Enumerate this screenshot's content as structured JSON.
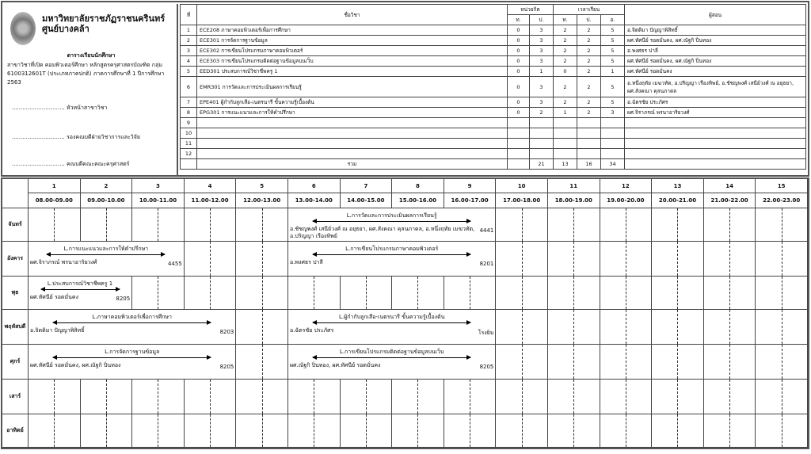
{
  "header": {
    "university": "มหาวิทยาลัยราชภัฏราชนครินทร์",
    "campus": "ศูนย์บางคล้า",
    "schedule_title": "ตารางเรียนนักศึกษา",
    "description": "สาขาวิชาที่เปิด คอมพิวเตอร์ศึกษา  หลักสูตรครุศาสตรบัณฑิต กลุ่ม 6100312601T (ประเภทภาคปกติ) ภาคการศึกษาที่ 1 ปีการศึกษา 2563",
    "signatures": [
      {
        "dots": "..............................",
        "role": "หัวหน้าสาขาวิชา"
      },
      {
        "dots": "..............................",
        "role": "รองคณบดีฝ่ายวิชาการและวิจัย"
      },
      {
        "dots": "..............................",
        "role": "คณบดีคณะคณะครุศาสตร์"
      }
    ]
  },
  "courses": {
    "headers": {
      "no": "ที่",
      "subject": "ชื่อวิชา",
      "credits": "หน่วยกิต",
      "hours": "เวลาเรียน",
      "th": "ท.",
      "pr": "ป.",
      "se": "อ.",
      "teacher": "ผู้สอน",
      "total": "รวม"
    },
    "rows": [
      {
        "no": "1",
        "subject": "ECE208 ภาษาคอมพิวเตอร์เพื่อการศึกษา",
        "c_t": "0",
        "c_p": "3",
        "h_t": "2",
        "h_p": "2",
        "h_s": "5",
        "teacher": "อ.จิตติมา ปัญญาพิสิทธิ์"
      },
      {
        "no": "2",
        "subject": "ECE301 การจัดการฐานข้อมูล",
        "c_t": "0",
        "c_p": "3",
        "h_t": "2",
        "h_p": "2",
        "h_s": "5",
        "teacher": "ผศ.ทัศนีย์ รอดมั่นคง, ผศ.ณัฐกิ ปิ่นทอง"
      },
      {
        "no": "3",
        "subject": "ECE302 การเขียนโปรแกรมภาษาคอมพิวเตอร์",
        "c_t": "0",
        "c_p": "3",
        "h_t": "2",
        "h_p": "2",
        "h_s": "5",
        "teacher": "อ.พงศธร ปาลี"
      },
      {
        "no": "4",
        "subject": "ECE303 การเขียนโปรแกรมติดต่อฐานข้อมูลบนเว็บ",
        "c_t": "0",
        "c_p": "3",
        "h_t": "2",
        "h_p": "2",
        "h_s": "5",
        "teacher": "ผศ.ทัศนีย์ รอดมั่นคง, ผศ.ณัฐกิ ปิ่นทอง"
      },
      {
        "no": "5",
        "subject": "EED301 ประสบการณ์วิชาชีพครู 1",
        "c_t": "0",
        "c_p": "1",
        "h_t": "0",
        "h_p": "2",
        "h_s": "1",
        "teacher": "ผศ.ทัศนีย์ รอดมั่นคง"
      },
      {
        "no": "6",
        "subject": "EMR301 การวัดและการประเมินผลการเรียนรู้",
        "c_t": "0",
        "c_p": "3",
        "h_t": "2",
        "h_p": "2",
        "h_s": "5",
        "teacher": "อ.หนึ่งฤทัย เมฆวทัต, อ.ปริญญา เรืองทิพย์, อ.ชัชญพงศ์ เสนีย์วงศ์ ณ อยุธยา, ผศ.สังคณา คุลนภาดล"
      },
      {
        "no": "7",
        "subject": "EPE401 ผู้กำกับลูกเสือ-เนตรนารี ขั้นความรู้เบื้องต้น",
        "c_t": "0",
        "c_p": "3",
        "h_t": "2",
        "h_p": "2",
        "h_s": "5",
        "teacher": "อ.ฉัตรชัย ประภัศร"
      },
      {
        "no": "8",
        "subject": "EPG301 การแนะแนวและการให้คำปรึกษา",
        "c_t": "0",
        "c_p": "2",
        "h_t": "1",
        "h_p": "2",
        "h_s": "3",
        "teacher": "ผศ.จิราภรณ์ พรนาอาริยวงศ์"
      },
      {
        "no": "9",
        "subject": "",
        "c_t": "",
        "c_p": "",
        "h_t": "",
        "h_p": "",
        "h_s": "",
        "teacher": ""
      },
      {
        "no": "10",
        "subject": "",
        "c_t": "",
        "c_p": "",
        "h_t": "",
        "h_p": "",
        "h_s": "",
        "teacher": ""
      },
      {
        "no": "11",
        "subject": "",
        "c_t": "",
        "c_p": "",
        "h_t": "",
        "h_p": "",
        "h_s": "",
        "teacher": ""
      },
      {
        "no": "12",
        "subject": "",
        "c_t": "",
        "c_p": "",
        "h_t": "",
        "h_p": "",
        "h_s": "",
        "teacher": ""
      }
    ],
    "totals": {
      "c_p": "21",
      "h_t": "13",
      "h_p": "16",
      "h_s": "34"
    }
  },
  "timetable": {
    "periods": [
      "1",
      "2",
      "3",
      "4",
      "5",
      "6",
      "7",
      "8",
      "9",
      "10",
      "11",
      "12",
      "13",
      "14",
      "15"
    ],
    "times": [
      "08.00-09.00",
      "09.00-10.00",
      "10.00-11.00",
      "11.00-12.00",
      "12.00-13.00",
      "13.00-14.00",
      "14.00-15.00",
      "15.00-16.00",
      "16.00-17.00",
      "17.00-18.00",
      "18.00-19.00",
      "19.00-20.00",
      "20.00-21.00",
      "21.00-22.00",
      "22.00-23.00"
    ],
    "days": [
      {
        "name": "จันทร์",
        "classes": [
          {
            "start": 6,
            "end": 9,
            "title": "L.การวัดและการประเมินผลการเรียนรู้",
            "teacher": "อ.ชัชญพงศ์ เสนีย์วงศ์ ณ อยุธยา, ผศ.สังคณา คุลนภาดล, อ.หนึ่งฤทัย เมฆวทัต, อ.ปริญญา เรืองทิพย์",
            "room": "4441"
          }
        ]
      },
      {
        "name": "อังคาร",
        "classes": [
          {
            "start": 1,
            "end": 3,
            "title": "L.การแนะแนวและการให้คำปรึกษา",
            "teacher": "ผศ.จิราภรณ์ พรนาอาริยวงศ์",
            "room": "4455"
          },
          {
            "start": 6,
            "end": 9,
            "title": "L.การเขียนโปรแกรมภาษาคอมพิวเตอร์",
            "teacher": "อ.พงศธร ปาลี",
            "room": "8201"
          }
        ]
      },
      {
        "name": "พุธ",
        "classes": [
          {
            "start": 1,
            "end": 2,
            "title": "L.ประสบการณ์วิชาชีพครู 1",
            "teacher": "ผศ.ทัศนีย์ รอดมั่นคง",
            "room": "8205"
          }
        ]
      },
      {
        "name": "พฤหัสบดี",
        "classes": [
          {
            "start": 1,
            "end": 4,
            "title": "L.ภาษาคอมพิวเตอร์เพื่อการศึกษา",
            "teacher": "อ.จิตติมา ปัญญาพิสิทธิ์",
            "room": "8203"
          },
          {
            "start": 6,
            "end": 9,
            "title": "L.ผู้กำกับลูกเสือ-เนตรนารี ขั้นความรู้เบื้องต้น",
            "teacher": "อ.ฉัตรชัย ประภัศร",
            "room": "โรงยิม"
          }
        ]
      },
      {
        "name": "ศุกร์",
        "classes": [
          {
            "start": 1,
            "end": 4,
            "title": "L.การจัดการฐานข้อมูล",
            "teacher": "ผศ.ทัศนีย์ รอดมั่นคง, ผศ.ณัฐกิ ปิ่นทอง",
            "room": "8205"
          },
          {
            "start": 6,
            "end": 9,
            "title": "L.การเขียนโปรแกรมติดต่อฐานข้อมูลบนเว็บ",
            "teacher": "ผศ.ณัฐกิ ปิ่นทอง, ผศ.ทัศนีย์ รอดมั่นคง",
            "room": "8205"
          }
        ]
      },
      {
        "name": "เสาร์",
        "classes": []
      },
      {
        "name": "อาทิตย์",
        "classes": []
      }
    ]
  }
}
